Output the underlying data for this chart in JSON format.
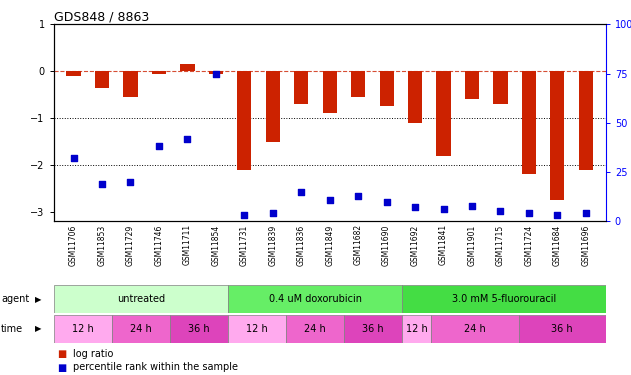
{
  "title": "GDS848 / 8863",
  "samples": [
    "GSM11706",
    "GSM11853",
    "GSM11729",
    "GSM11746",
    "GSM11711",
    "GSM11854",
    "GSM11731",
    "GSM11839",
    "GSM11836",
    "GSM11849",
    "GSM11682",
    "GSM11690",
    "GSM11692",
    "GSM11841",
    "GSM11901",
    "GSM11715",
    "GSM11724",
    "GSM11684",
    "GSM11696"
  ],
  "log_ratio": [
    -0.1,
    -0.35,
    -0.55,
    -0.05,
    0.15,
    -0.05,
    -2.1,
    -1.5,
    -0.7,
    -0.9,
    -0.55,
    -0.75,
    -1.1,
    -1.8,
    -0.6,
    -0.7,
    -2.2,
    -2.75,
    -2.1
  ],
  "percentile_rank": [
    32,
    19,
    20,
    38,
    42,
    75,
    3,
    4,
    15,
    11,
    13,
    10,
    7,
    6,
    8,
    5,
    4,
    3,
    4
  ],
  "bar_color": "#cc2200",
  "dot_color": "#0000cc",
  "ylim_left": [
    -3.2,
    1.0
  ],
  "ylim_right": [
    0,
    100
  ],
  "yticks_left": [
    1,
    0,
    -1,
    -2,
    -3
  ],
  "yticks_right": [
    100,
    75,
    50,
    25,
    0
  ],
  "dotted_lines": [
    -1,
    -2
  ],
  "agent_spans": [
    {
      "label": "untreated",
      "start": 0,
      "end": 6,
      "color": "#ccffcc"
    },
    {
      "label": "0.4 uM doxorubicin",
      "start": 6,
      "end": 12,
      "color": "#66ee66"
    },
    {
      "label": "3.0 mM 5-fluorouracil",
      "start": 12,
      "end": 19,
      "color": "#44dd44"
    }
  ],
  "time_spans": [
    {
      "label": "12 h",
      "start": 0,
      "end": 2,
      "color": "#ffaaee"
    },
    {
      "label": "24 h",
      "start": 2,
      "end": 4,
      "color": "#ee66cc"
    },
    {
      "label": "36 h",
      "start": 4,
      "end": 6,
      "color": "#dd44bb"
    },
    {
      "label": "12 h",
      "start": 6,
      "end": 8,
      "color": "#ffaaee"
    },
    {
      "label": "24 h",
      "start": 8,
      "end": 10,
      "color": "#ee66cc"
    },
    {
      "label": "36 h",
      "start": 10,
      "end": 12,
      "color": "#dd44bb"
    },
    {
      "label": "12 h",
      "start": 12,
      "end": 13,
      "color": "#ffaaee"
    },
    {
      "label": "24 h",
      "start": 13,
      "end": 16,
      "color": "#ee66cc"
    },
    {
      "label": "36 h",
      "start": 16,
      "end": 19,
      "color": "#dd44bb"
    }
  ],
  "background_color": "#ffffff",
  "label_bg": "#cccccc"
}
